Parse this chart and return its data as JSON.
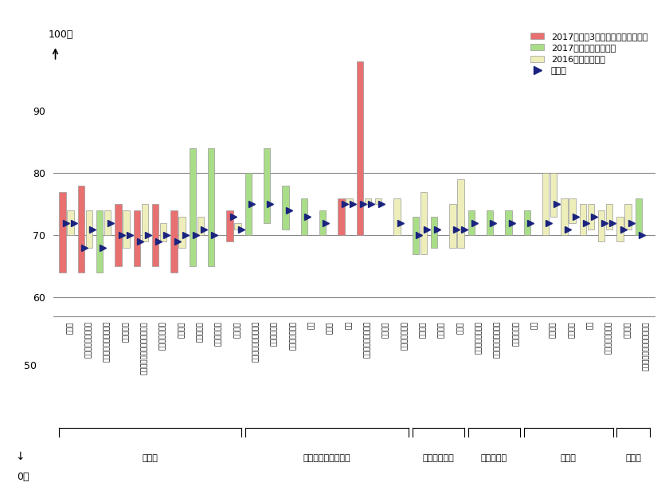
{
  "categories": [
    "百貨店",
    "スーパーマーケット",
    "コンビニエンスストア",
    "家電量販店",
    "生活用品店・ホームセンター",
    "ドラッグストア",
    "衣料品店",
    "名种専門店",
    "自動車販売店",
    "通信販売",
    "サービスステーション",
    "シティホテル",
    "ビジネスホテル",
    "飲食",
    "カフェ",
    "旅行",
    "エンタテインメント",
    "国際航空",
    "国内長距離交通",
    "近郊鉄道",
    "携帯電話",
    "宅配便",
    "生活関連サービス",
    "フィットネスクラブ",
    "教育サービス",
    "銀行",
    "生命保険",
    "損害保険",
    "証券",
    "クレジットカード",
    "事務機器",
    "銀行（借入・貯蓄・投賄）"
  ],
  "bar_type": [
    "red",
    "red",
    "green",
    "red",
    "red",
    "red",
    "red",
    "green",
    "green",
    "red",
    "green",
    "green",
    "green",
    "green",
    "green",
    "red",
    "red",
    "yellow",
    "yellow",
    "green",
    "green",
    "yellow",
    "green",
    "green",
    "green",
    "green",
    "yellow",
    "yellow",
    "yellow",
    "yellow",
    "yellow",
    "green"
  ],
  "cur_bottom": [
    64,
    64,
    64,
    65,
    65,
    65,
    64,
    65,
    65,
    69,
    70,
    72,
    71,
    70,
    70,
    70,
    70,
    75,
    70,
    67,
    68,
    68,
    70,
    70,
    70,
    70,
    70,
    70,
    70,
    69,
    69,
    70
  ],
  "cur_top": [
    77,
    78,
    74,
    75,
    74,
    75,
    74,
    84,
    84,
    74,
    80,
    84,
    78,
    76,
    74,
    76,
    98,
    76,
    76,
    73,
    73,
    75,
    74,
    74,
    74,
    74,
    80,
    76,
    75,
    74,
    73,
    76
  ],
  "cur_median": [
    72,
    68,
    68,
    70,
    69,
    69,
    69,
    70,
    70,
    73,
    75,
    75,
    74,
    73,
    72,
    75,
    75,
    75,
    72,
    70,
    71,
    71,
    72,
    72,
    72,
    72,
    72,
    71,
    72,
    72,
    71,
    70
  ],
  "prev_bottom": [
    70,
    68,
    70,
    68,
    69,
    69,
    68,
    70,
    null,
    71,
    null,
    null,
    null,
    null,
    null,
    75,
    75,
    null,
    null,
    67,
    null,
    68,
    null,
    null,
    null,
    null,
    73,
    72,
    71,
    71,
    71,
    null
  ],
  "prev_top": [
    74,
    74,
    74,
    74,
    75,
    72,
    73,
    73,
    null,
    72,
    null,
    null,
    null,
    null,
    null,
    76,
    76,
    null,
    null,
    77,
    null,
    79,
    null,
    null,
    null,
    null,
    80,
    76,
    75,
    75,
    75,
    null
  ],
  "prev_median": [
    72,
    71,
    72,
    70,
    70,
    70,
    70,
    71,
    null,
    71,
    null,
    null,
    null,
    null,
    null,
    75,
    75,
    null,
    null,
    71,
    null,
    71,
    null,
    null,
    null,
    null,
    75,
    73,
    73,
    72,
    72,
    null
  ],
  "colors": {
    "red": "#e87070",
    "green": "#aadd88",
    "yellow": "#eeeebb",
    "prev": "#eeeebb",
    "median": "#1a237e"
  },
  "group_labels": [
    "小売系",
    "観光・飲食・交通系",
    "通信・物流系",
    "生活支援系",
    "金融系",
    "その他"
  ],
  "group_ranges": [
    [
      0,
      9
    ],
    [
      10,
      18
    ],
    [
      19,
      21
    ],
    [
      22,
      24
    ],
    [
      25,
      29
    ],
    [
      30,
      31
    ]
  ],
  "legend": [
    "2017年度第3回（今回）発表の業種",
    "2017年度調査済の業種",
    "2016年度調査結果",
    "中央値"
  ]
}
